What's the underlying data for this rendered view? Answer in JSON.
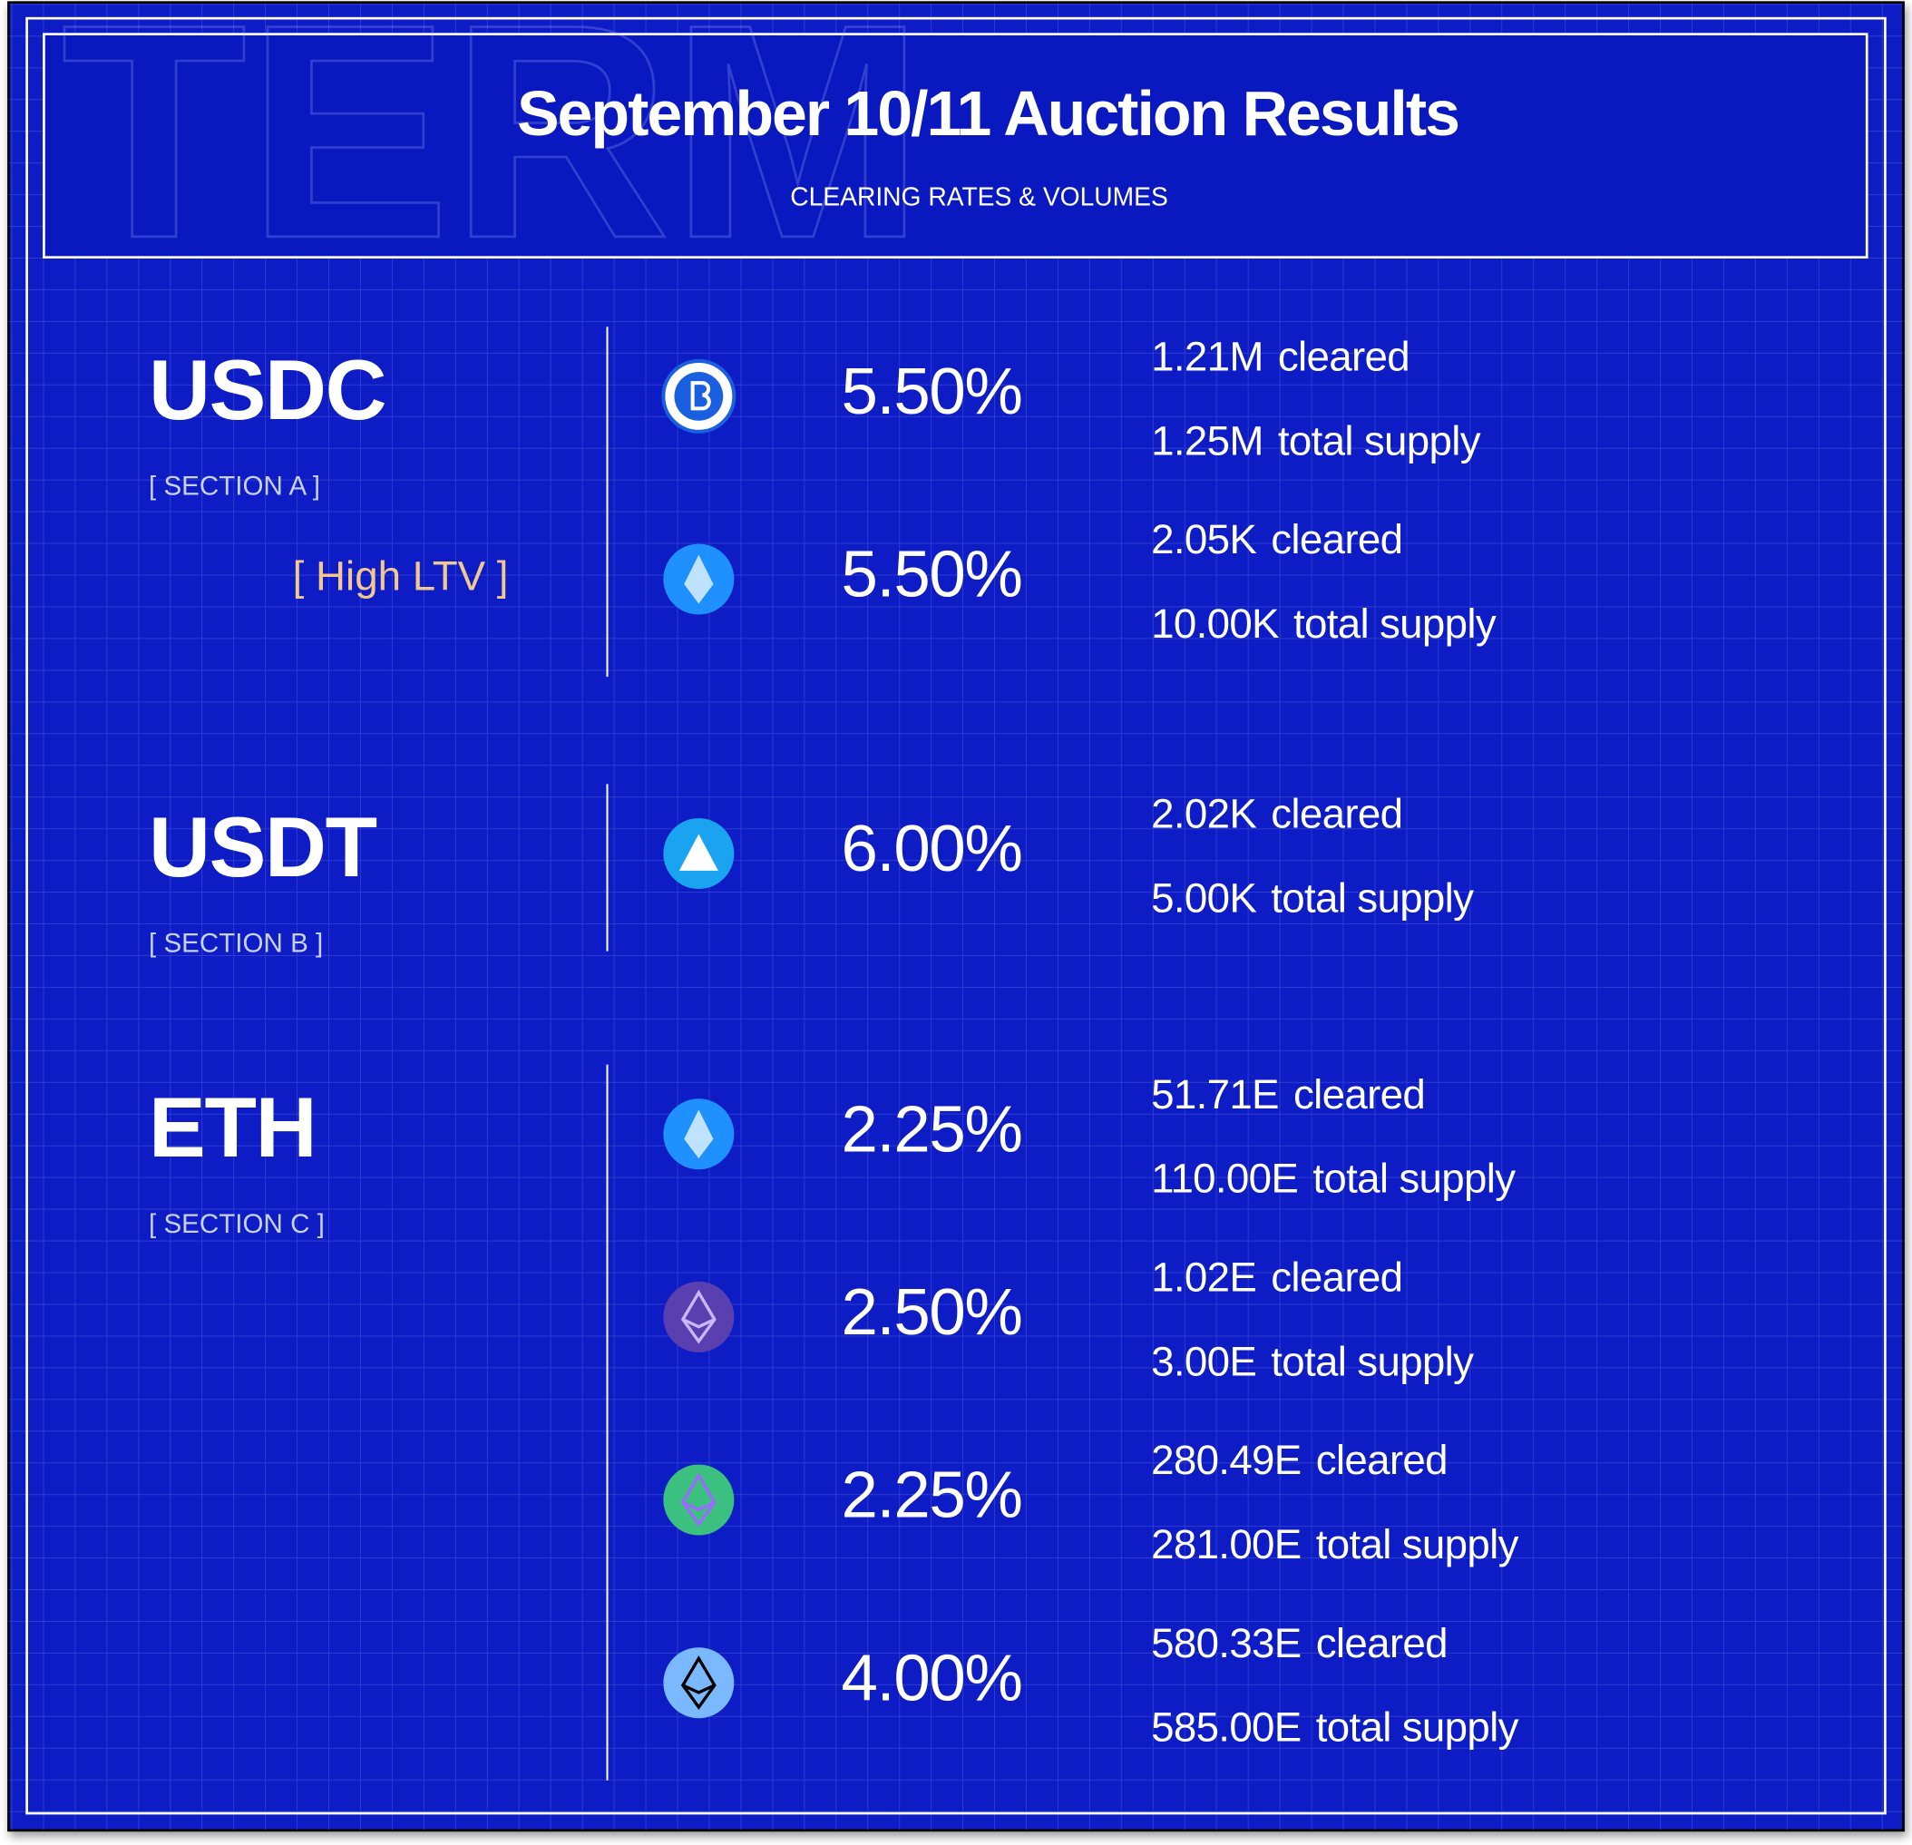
{
  "header": {
    "watermark": "TERM",
    "title": "September 10/11 Auction Results",
    "subtitle": "CLEARING RATES & VOLUMES"
  },
  "sections": [
    {
      "name": "USDC",
      "label": "[ SECTION A ]",
      "tag": "[ High LTV ]",
      "rows": [
        {
          "rate": "5.50%",
          "cleared": [
            "1.21M",
            "cleared"
          ],
          "supply": [
            "1.25M",
            "total supply"
          ]
        },
        {
          "rate": "5.50%",
          "cleared": [
            "2.05K",
            "cleared"
          ],
          "supply": [
            "10.00K",
            "total supply"
          ]
        }
      ]
    },
    {
      "name": "USDT",
      "label": "[ SECTION B ]",
      "rows": [
        {
          "rate": "6.00%",
          "cleared": [
            "2.02K",
            "cleared"
          ],
          "supply": [
            "5.00K",
            "total supply"
          ]
        }
      ]
    },
    {
      "name": "ETH",
      "label": "[ SECTION C ]",
      "rows": [
        {
          "rate": "2.25%",
          "cleared": [
            "51.71E",
            "cleared"
          ],
          "supply": [
            "110.00E",
            "total supply"
          ]
        },
        {
          "rate": "2.50%",
          "cleared": [
            "1.02E",
            "cleared"
          ],
          "supply": [
            "3.00E",
            "total supply"
          ]
        },
        {
          "rate": "2.25%",
          "cleared": [
            "280.49E",
            "cleared"
          ],
          "supply": [
            "281.00E",
            "total supply"
          ]
        },
        {
          "rate": "4.00%",
          "cleared": [
            "580.33E",
            "cleared"
          ],
          "supply": [
            "585.00E",
            "total supply"
          ]
        }
      ]
    }
  ]
}
